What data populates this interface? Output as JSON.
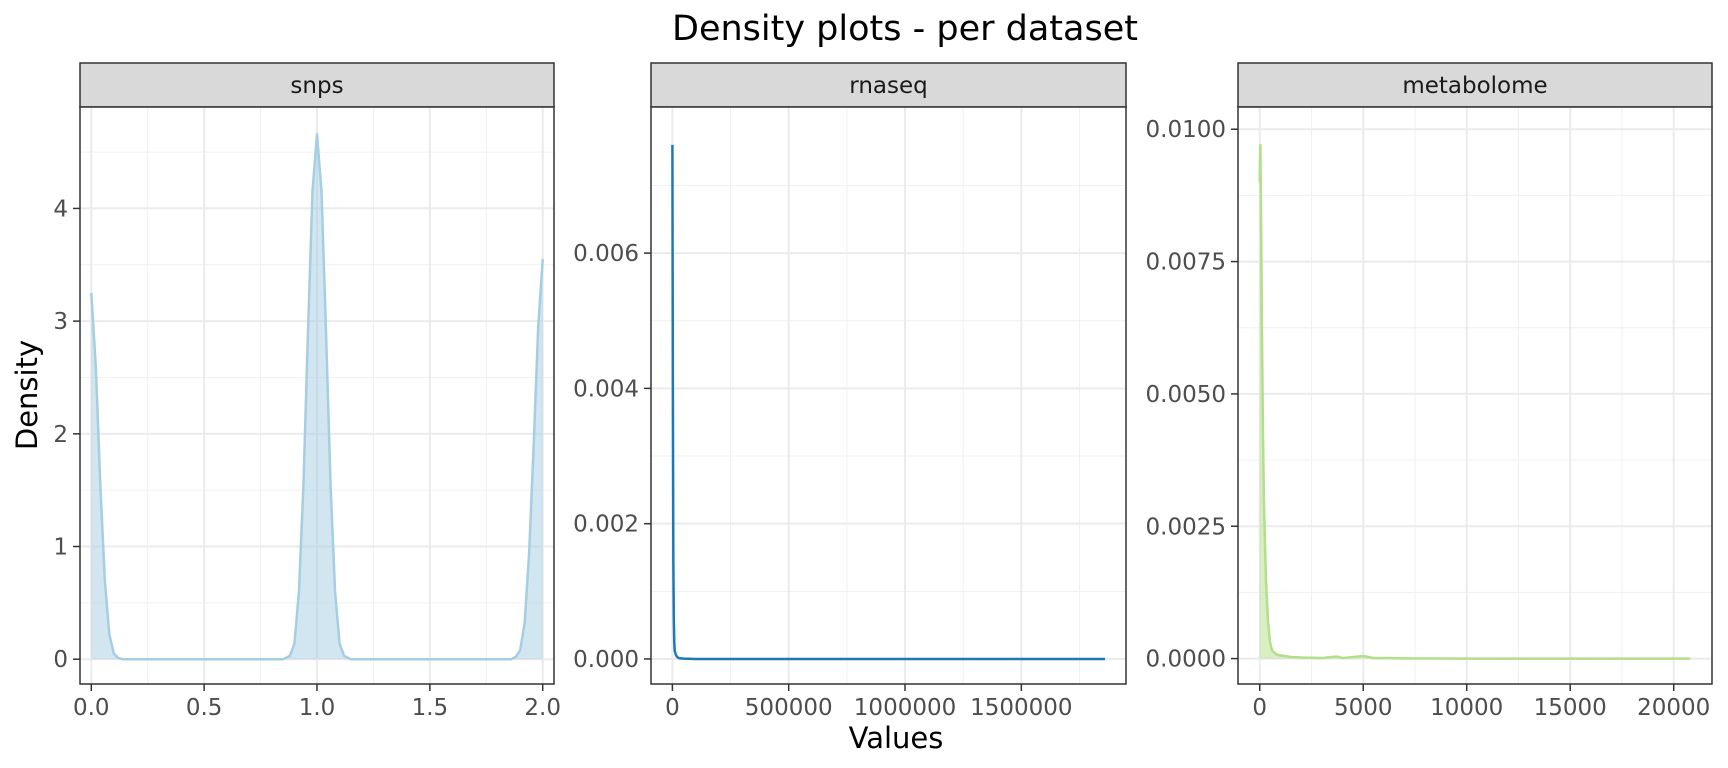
{
  "chart_data": {
    "type": "area",
    "title": "Density plots - per dataset",
    "xlabel": "Values",
    "ylabel": "Density",
    "grid": true,
    "legend": "none",
    "panels": [
      {
        "name": "snps",
        "color": "#a6cee3",
        "fill": "#a6cee3",
        "filled": true,
        "xlim": [
          -0.05,
          2.05
        ],
        "ylim": [
          -0.22,
          4.9
        ],
        "x_ticks": [
          0.0,
          0.5,
          1.0,
          1.5,
          2.0
        ],
        "x_tick_labels": [
          "0.0",
          "0.5",
          "1.0",
          "1.5",
          "2.0"
        ],
        "y_ticks": [
          0,
          1,
          2,
          3,
          4
        ],
        "y_tick_labels": [
          "0",
          "1",
          "2",
          "3",
          "4"
        ],
        "x": [
          0.0,
          0.02,
          0.04,
          0.06,
          0.08,
          0.1,
          0.12,
          0.14,
          0.2,
          0.5,
          0.8,
          0.85,
          0.88,
          0.9,
          0.92,
          0.94,
          0.96,
          0.98,
          1.0,
          1.02,
          1.04,
          1.06,
          1.08,
          1.1,
          1.12,
          1.15,
          1.5,
          1.8,
          1.86,
          1.88,
          1.9,
          1.92,
          1.94,
          1.96,
          1.98,
          2.0
        ],
        "y": [
          3.25,
          2.6,
          1.55,
          0.7,
          0.22,
          0.05,
          0.01,
          0.0,
          0.0,
          0.0,
          0.0,
          0.0,
          0.03,
          0.14,
          0.6,
          1.55,
          2.9,
          4.15,
          4.66,
          4.15,
          2.9,
          1.55,
          0.6,
          0.14,
          0.03,
          0.0,
          0.0,
          0.0,
          0.0,
          0.02,
          0.08,
          0.32,
          0.95,
          1.9,
          2.95,
          3.55
        ]
      },
      {
        "name": "rnaseq",
        "color": "#1f78b4",
        "fill": "#1f78b4",
        "filled": false,
        "xlim": [
          -92000,
          1950000
        ],
        "ylim": [
          -0.00037,
          0.00816
        ],
        "x_ticks": [
          0,
          500000,
          1000000,
          1500000
        ],
        "x_tick_labels": [
          "0",
          "500000",
          "1000000",
          "1500000"
        ],
        "y_ticks": [
          0.0,
          0.002,
          0.004,
          0.006
        ],
        "y_tick_labels": [
          "0.000",
          "0.002",
          "0.004",
          "0.006"
        ],
        "x": [
          0,
          2000,
          4000,
          6000,
          8000,
          10000,
          15000,
          20000,
          30000,
          50000,
          100000,
          500000,
          1000000,
          1500000,
          1860000
        ],
        "y": [
          0.0076,
          0.004,
          0.0015,
          0.0006,
          0.00025,
          0.00012,
          6e-05,
          3e-05,
          1e-05,
          5e-06,
          0.0,
          0.0,
          0.0,
          0.0,
          0.0
        ]
      },
      {
        "name": "metabolome",
        "color": "#b2df8a",
        "fill": "#b2df8a",
        "filled": true,
        "xlim": [
          -1050,
          21850
        ],
        "ylim": [
          -0.00048,
          0.01042
        ],
        "x_ticks": [
          0,
          5000,
          10000,
          15000,
          20000
        ],
        "x_tick_labels": [
          "0",
          "5000",
          "10000",
          "15000",
          "20000"
        ],
        "y_ticks": [
          0.0,
          0.0025,
          0.005,
          0.0075,
          0.01
        ],
        "y_tick_labels": [
          "0.0000",
          "0.0025",
          "0.0050",
          "0.0075",
          "0.0100"
        ],
        "x": [
          0,
          30,
          60,
          100,
          150,
          200,
          300,
          400,
          500,
          600,
          800,
          1000,
          1500,
          2000,
          3000,
          3700,
          4000,
          5000,
          5500,
          7000,
          10000,
          15000,
          20000,
          20800
        ],
        "y": [
          0.009,
          0.0097,
          0.0085,
          0.0065,
          0.0045,
          0.003,
          0.0015,
          0.0007,
          0.0003,
          0.00015,
          8e-05,
          6e-05,
          3e-05,
          2e-05,
          1e-05,
          4e-05,
          1e-05,
          5e-05,
          1e-05,
          5e-06,
          0.0,
          0.0,
          0.0,
          0.0
        ]
      }
    ]
  }
}
